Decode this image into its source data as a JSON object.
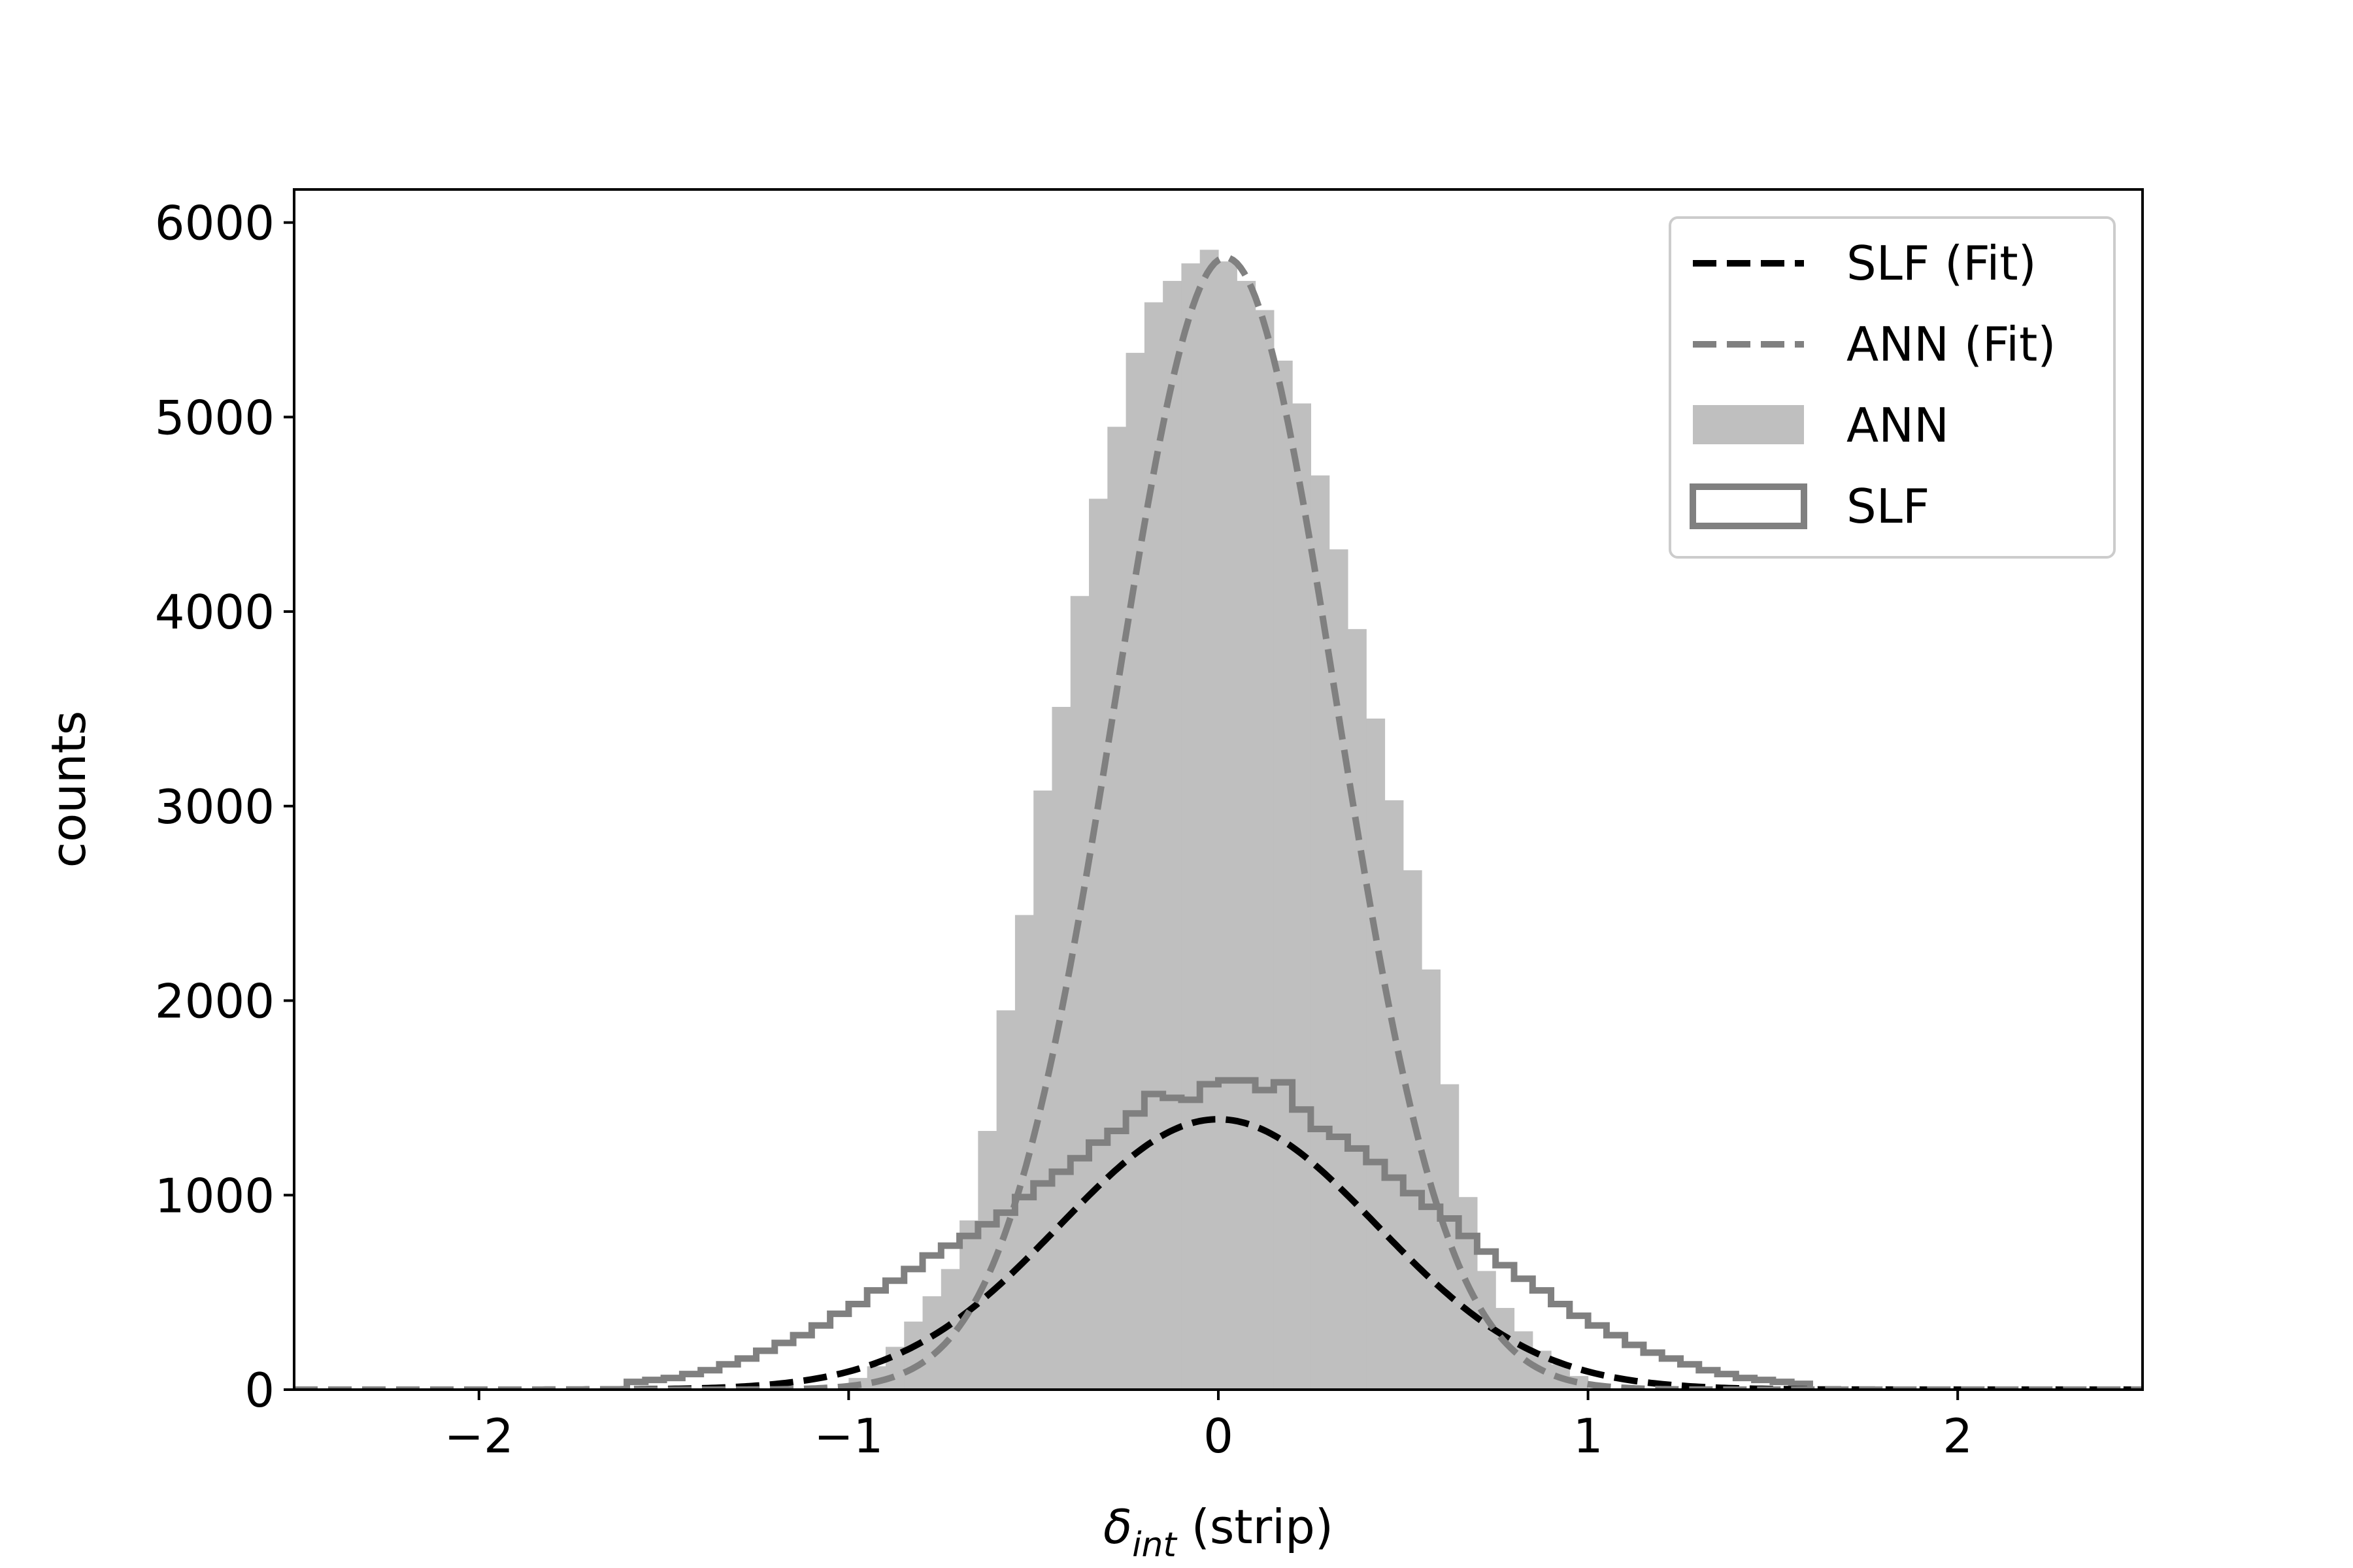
{
  "chart_data": {
    "type": "histogram",
    "xlabel": {
      "main": "δ",
      "sub": "int",
      "rest": " (strip)"
    },
    "ylabel": "counts",
    "xlim": [
      -2.5,
      2.5
    ],
    "ylim": [
      0,
      6170
    ],
    "xticks": [
      {
        "value": -2,
        "label": "−2"
      },
      {
        "value": -1,
        "label": "−1"
      },
      {
        "value": 0,
        "label": "0"
      },
      {
        "value": 1,
        "label": "1"
      },
      {
        "value": 2,
        "label": "2"
      }
    ],
    "yticks": [
      {
        "value": 0,
        "label": "0"
      },
      {
        "value": 1000,
        "label": "1000"
      },
      {
        "value": 2000,
        "label": "2000"
      },
      {
        "value": 3000,
        "label": "3000"
      },
      {
        "value": 4000,
        "label": "4000"
      },
      {
        "value": 5000,
        "label": "5000"
      },
      {
        "value": 6000,
        "label": "6000"
      }
    ],
    "grid": false,
    "legend_position": "top-right",
    "legend": [
      {
        "label": "SLF (Fit)",
        "kind": "dashed-line",
        "color": "#000000"
      },
      {
        "label": "ANN (Fit)",
        "kind": "dashed-line",
        "color": "#808080"
      },
      {
        "label": "ANN",
        "kind": "filled-hist",
        "color": "#bfbfbf"
      },
      {
        "label": "SLF",
        "kind": "step-hist",
        "color": "#808080"
      }
    ],
    "series": [
      {
        "name": "ANN",
        "kind": "filled-hist",
        "color": "#bfbfbf",
        "bin_width": 0.05,
        "bin_centers": [
          -0.975,
          -0.925,
          -0.875,
          -0.825,
          -0.775,
          -0.725,
          -0.675,
          -0.625,
          -0.575,
          -0.525,
          -0.475,
          -0.425,
          -0.375,
          -0.325,
          -0.275,
          -0.225,
          -0.175,
          -0.125,
          -0.075,
          -0.025,
          0.025,
          0.075,
          0.125,
          0.175,
          0.225,
          0.275,
          0.325,
          0.375,
          0.425,
          0.475,
          0.525,
          0.575,
          0.625,
          0.675,
          0.725,
          0.775,
          0.825,
          0.875,
          0.925,
          0.975
        ],
        "counts": [
          60,
          120,
          220,
          350,
          480,
          620,
          870,
          1330,
          1950,
          2440,
          3080,
          3510,
          4080,
          4580,
          4950,
          5330,
          5590,
          5700,
          5790,
          5860,
          5800,
          5700,
          5550,
          5290,
          5070,
          4700,
          4320,
          3910,
          3450,
          3030,
          2670,
          2160,
          1570,
          990,
          610,
          420,
          300,
          200,
          130,
          70
        ]
      },
      {
        "name": "SLF",
        "kind": "step-hist",
        "color": "#808080",
        "bin_width": 0.05,
        "bin_centers": [
          -1.575,
          -1.525,
          -1.475,
          -1.425,
          -1.375,
          -1.325,
          -1.275,
          -1.225,
          -1.175,
          -1.125,
          -1.075,
          -1.025,
          -0.975,
          -0.925,
          -0.875,
          -0.825,
          -0.775,
          -0.725,
          -0.675,
          -0.625,
          -0.575,
          -0.525,
          -0.475,
          -0.425,
          -0.375,
          -0.325,
          -0.275,
          -0.225,
          -0.175,
          -0.125,
          -0.075,
          -0.025,
          0.025,
          0.075,
          0.125,
          0.175,
          0.225,
          0.275,
          0.325,
          0.375,
          0.425,
          0.475,
          0.525,
          0.575,
          0.625,
          0.675,
          0.725,
          0.775,
          0.825,
          0.875,
          0.925,
          0.975,
          1.025,
          1.075,
          1.125,
          1.175,
          1.225,
          1.275,
          1.325,
          1.375,
          1.425,
          1.475,
          1.525,
          1.575
        ],
        "counts": [
          40,
          50,
          60,
          80,
          100,
          130,
          160,
          200,
          240,
          280,
          330,
          390,
          440,
          510,
          560,
          620,
          690,
          740,
          790,
          850,
          910,
          990,
          1060,
          1120,
          1190,
          1270,
          1330,
          1420,
          1520,
          1500,
          1490,
          1570,
          1590,
          1590,
          1540,
          1580,
          1440,
          1340,
          1300,
          1240,
          1170,
          1090,
          1010,
          940,
          880,
          790,
          710,
          640,
          570,
          510,
          440,
          380,
          330,
          280,
          230,
          190,
          160,
          130,
          100,
          80,
          60,
          50,
          40,
          30
        ]
      },
      {
        "name": "SLF (Fit)",
        "kind": "gaussian-fit",
        "color": "#000000",
        "amplitude": 1390,
        "mean": 0.0,
        "sigma": 0.43
      },
      {
        "name": "ANN (Fit)",
        "kind": "gaussian-fit",
        "color": "#808080",
        "amplitude": 5820,
        "mean": 0.02,
        "sigma": 0.3
      }
    ]
  }
}
